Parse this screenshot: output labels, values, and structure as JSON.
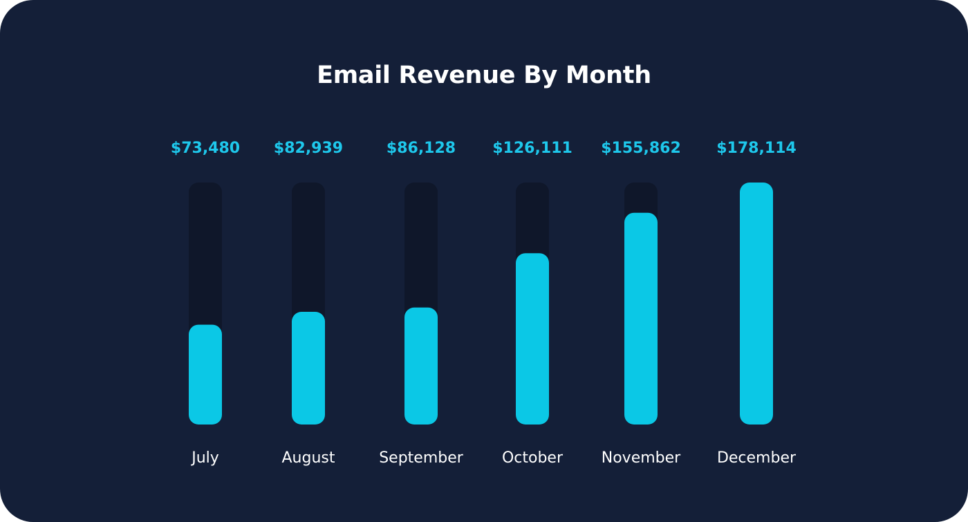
{
  "colors": {
    "background": "#141f38",
    "track": "#0f172a",
    "bar": "#0bc8e6",
    "value_text": "#1ec8ec",
    "label_text": "#ffffff",
    "title_text": "#ffffff"
  },
  "chart_data": {
    "type": "bar",
    "title": "Email Revenue By Month",
    "categories": [
      "July",
      "August",
      "September",
      "October",
      "November",
      "December"
    ],
    "values": [
      73480,
      82939,
      86128,
      126111,
      155862,
      178114
    ],
    "value_labels": [
      "$73,480",
      "$82,939",
      "$86,128",
      "$126,111",
      "$155,862",
      "$178,114"
    ],
    "ylim": [
      0,
      178114
    ],
    "grid": false,
    "legend": "none"
  }
}
